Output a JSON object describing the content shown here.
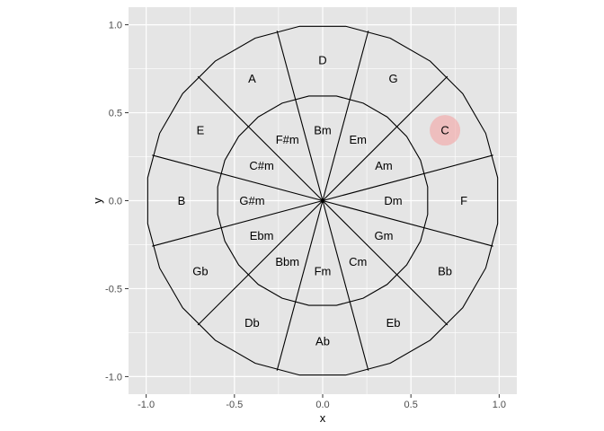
{
  "chart_data": {
    "type": "scatter",
    "subtype": "circle-of-fifths",
    "xlabel": "x",
    "ylabel": "y",
    "xlim": [
      -1.1,
      1.1
    ],
    "ylim": [
      -1.1,
      1.1
    ],
    "x_ticks": [
      -1.0,
      -0.5,
      0.0,
      0.5,
      1.0
    ],
    "y_ticks": [
      -1.0,
      -0.5,
      0.0,
      0.5,
      1.0
    ],
    "x_tick_labels": [
      "-1.0",
      "-0.5",
      "0.0",
      "0.5",
      "1.0"
    ],
    "y_tick_labels": [
      "-1.0",
      "-0.5",
      "0.0",
      "0.5",
      "1.0"
    ],
    "grid": true,
    "panel_background": "#e5e5e5",
    "grid_color": "#ffffff",
    "line_color": "#000000",
    "inner_radius": 0.6,
    "outer_radius": 1.0,
    "segments": 12,
    "major_keys": [
      {
        "label": "D",
        "x": 0.0,
        "y": 0.8
      },
      {
        "label": "G",
        "x": 0.4,
        "y": 0.693
      },
      {
        "label": "C",
        "x": 0.693,
        "y": 0.4
      },
      {
        "label": "F",
        "x": 0.8,
        "y": 0.0
      },
      {
        "label": "Bb",
        "x": 0.693,
        "y": -0.4
      },
      {
        "label": "Eb",
        "x": 0.4,
        "y": -0.693
      },
      {
        "label": "Ab",
        "x": 0.0,
        "y": -0.8
      },
      {
        "label": "Db",
        "x": -0.4,
        "y": -0.693
      },
      {
        "label": "Gb",
        "x": -0.693,
        "y": -0.4
      },
      {
        "label": "B",
        "x": -0.8,
        "y": 0.0
      },
      {
        "label": "E",
        "x": -0.693,
        "y": 0.4
      },
      {
        "label": "A",
        "x": -0.4,
        "y": 0.693
      }
    ],
    "minor_keys": [
      {
        "label": "Bm",
        "x": 0.0,
        "y": 0.4
      },
      {
        "label": "Em",
        "x": 0.2,
        "y": 0.346
      },
      {
        "label": "Am",
        "x": 0.346,
        "y": 0.2
      },
      {
        "label": "Dm",
        "x": 0.4,
        "y": 0.0
      },
      {
        "label": "Gm",
        "x": 0.346,
        "y": -0.2
      },
      {
        "label": "Cm",
        "x": 0.2,
        "y": -0.346
      },
      {
        "label": "Fm",
        "x": 0.0,
        "y": -0.4
      },
      {
        "label": "Bbm",
        "x": -0.2,
        "y": -0.346
      },
      {
        "label": "Ebm",
        "x": -0.346,
        "y": -0.2
      },
      {
        "label": "G#m",
        "x": -0.4,
        "y": 0.0
      },
      {
        "label": "C#m",
        "x": -0.346,
        "y": 0.2
      },
      {
        "label": "F#m",
        "x": -0.2,
        "y": 0.346
      }
    ],
    "highlight": {
      "label": "C",
      "x": 0.693,
      "y": 0.4,
      "color": "#f4a3a3",
      "opacity": 0.6
    }
  }
}
